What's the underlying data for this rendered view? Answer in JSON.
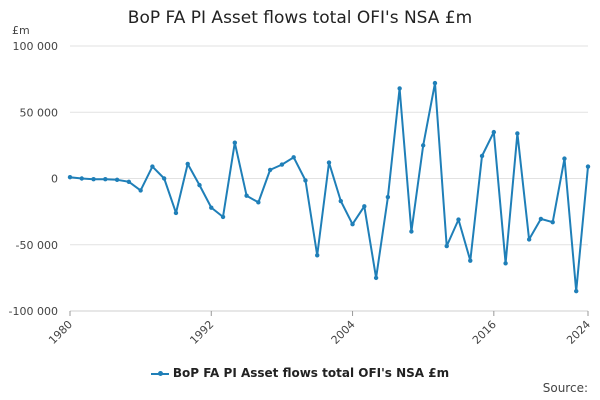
{
  "chart_data": {
    "type": "line",
    "title": "BoP FA PI Asset flows total OFI's NSA £m",
    "ylabel": "£m",
    "xlabel": "",
    "source": "Source:",
    "ylim": [
      -100000,
      100000
    ],
    "yticks": [
      {
        "value": 100000,
        "label": "100 000"
      },
      {
        "value": 50000,
        "label": "50 000"
      },
      {
        "value": 0,
        "label": "0"
      },
      {
        "value": -50000,
        "label": "-50 000"
      },
      {
        "value": -100000,
        "label": "-100 000"
      }
    ],
    "xlim": [
      1980,
      2024
    ],
    "xticks": [
      {
        "value": 1980,
        "label": "1980"
      },
      {
        "value": 1992,
        "label": "1992"
      },
      {
        "value": 2004,
        "label": "2004"
      },
      {
        "value": 2016,
        "label": "2016"
      },
      {
        "value": 2024,
        "label": "2024"
      }
    ],
    "grid": true,
    "legend_position": "bottom",
    "color": "#1f7fb8",
    "series": [
      {
        "name": "BoP FA PI Asset flows total OFI's NSA £m",
        "x": [
          1980,
          1981,
          1982,
          1983,
          1984,
          1985,
          1986,
          1987,
          1988,
          1989,
          1990,
          1991,
          1992,
          1993,
          1994,
          1995,
          1996,
          1997,
          1998,
          1999,
          2000,
          2001,
          2002,
          2003,
          2004,
          2005,
          2006,
          2007,
          2008,
          2009,
          2010,
          2011,
          2012,
          2013,
          2014,
          2015,
          2016,
          2017,
          2018,
          2019,
          2020,
          2021,
          2022,
          2023,
          2024
        ],
        "values": [
          1000,
          0,
          -500,
          -500,
          -1000,
          -2500,
          -9000,
          9000,
          0,
          -26000,
          11000,
          -5000,
          -22000,
          -29000,
          27000,
          -13000,
          -18000,
          6500,
          10500,
          16000,
          -1500,
          -58000,
          12000,
          -17000,
          -34500,
          -21000,
          -75000,
          -14000,
          68000,
          -40000,
          25000,
          72000,
          -51000,
          -31000,
          -62000,
          17000,
          35000,
          -64000,
          34000,
          -46000,
          -30500,
          -33000,
          15000,
          -85000,
          9000
        ]
      }
    ]
  }
}
